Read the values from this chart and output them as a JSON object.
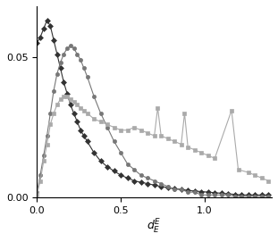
{
  "title": "",
  "xlabel": "$d_E^E$",
  "ylabel": "",
  "xlim": [
    0,
    1.4
  ],
  "ylim": [
    0,
    0.068
  ],
  "yticks": [
    0,
    0.05
  ],
  "xticks": [
    0,
    0.5,
    1
  ],
  "bg_color": "#ffffff",
  "lines": [
    {
      "color": "#333333",
      "marker": "D",
      "markersize": 3,
      "linewidth": 0.8,
      "x": [
        0.0,
        0.02,
        0.04,
        0.06,
        0.08,
        0.1,
        0.12,
        0.14,
        0.16,
        0.18,
        0.2,
        0.22,
        0.24,
        0.26,
        0.28,
        0.3,
        0.34,
        0.38,
        0.42,
        0.46,
        0.5,
        0.54,
        0.58,
        0.62,
        0.66,
        0.7,
        0.74,
        0.78,
        0.82,
        0.86,
        0.9,
        0.94,
        0.98,
        1.02,
        1.06,
        1.1,
        1.14,
        1.18,
        1.22,
        1.26,
        1.3,
        1.34,
        1.38
      ],
      "y": [
        0.055,
        0.057,
        0.06,
        0.063,
        0.061,
        0.056,
        0.051,
        0.046,
        0.041,
        0.037,
        0.033,
        0.03,
        0.027,
        0.024,
        0.022,
        0.02,
        0.016,
        0.013,
        0.011,
        0.0095,
        0.008,
        0.007,
        0.006,
        0.0055,
        0.005,
        0.0045,
        0.004,
        0.0036,
        0.0032,
        0.003,
        0.0026,
        0.0024,
        0.0022,
        0.002,
        0.0018,
        0.0016,
        0.0014,
        0.0012,
        0.001,
        0.001,
        0.001,
        0.001,
        0.001
      ]
    },
    {
      "color": "#777777",
      "marker": "o",
      "markersize": 3,
      "linewidth": 0.8,
      "x": [
        0.0,
        0.02,
        0.04,
        0.06,
        0.08,
        0.1,
        0.12,
        0.14,
        0.16,
        0.18,
        0.2,
        0.22,
        0.24,
        0.26,
        0.28,
        0.3,
        0.34,
        0.38,
        0.42,
        0.46,
        0.5,
        0.54,
        0.58,
        0.62,
        0.66,
        0.7,
        0.74,
        0.78,
        0.82,
        0.86,
        0.9,
        0.94,
        0.98,
        1.02,
        1.06,
        1.1,
        1.14,
        1.18,
        1.22,
        1.26,
        1.3,
        1.34,
        1.38
      ],
      "y": [
        0.002,
        0.008,
        0.015,
        0.022,
        0.03,
        0.038,
        0.044,
        0.048,
        0.051,
        0.053,
        0.054,
        0.053,
        0.051,
        0.049,
        0.046,
        0.043,
        0.036,
        0.03,
        0.025,
        0.02,
        0.016,
        0.012,
        0.01,
        0.008,
        0.007,
        0.006,
        0.005,
        0.004,
        0.003,
        0.003,
        0.002,
        0.002,
        0.001,
        0.001,
        0.001,
        0.001,
        0.001,
        0.0005,
        0.0005,
        0.0005,
        0.0005,
        0.0005,
        0.0005
      ]
    },
    {
      "color": "#aaaaaa",
      "marker": "s",
      "markersize": 3,
      "linewidth": 0.8,
      "x": [
        0.0,
        0.02,
        0.04,
        0.06,
        0.08,
        0.1,
        0.12,
        0.14,
        0.16,
        0.18,
        0.2,
        0.22,
        0.24,
        0.26,
        0.28,
        0.3,
        0.34,
        0.38,
        0.42,
        0.46,
        0.5,
        0.54,
        0.58,
        0.62,
        0.66,
        0.7,
        0.72,
        0.74,
        0.78,
        0.82,
        0.86,
        0.88,
        0.9,
        0.94,
        0.98,
        1.02,
        1.06,
        1.16,
        1.2,
        1.26,
        1.3,
        1.34,
        1.38
      ],
      "y": [
        0.001,
        0.006,
        0.013,
        0.019,
        0.026,
        0.03,
        0.033,
        0.035,
        0.036,
        0.036,
        0.035,
        0.034,
        0.033,
        0.032,
        0.031,
        0.03,
        0.028,
        0.027,
        0.026,
        0.025,
        0.024,
        0.024,
        0.025,
        0.024,
        0.023,
        0.022,
        0.032,
        0.022,
        0.021,
        0.02,
        0.019,
        0.03,
        0.018,
        0.017,
        0.016,
        0.015,
        0.014,
        0.031,
        0.01,
        0.009,
        0.008,
        0.007,
        0.006
      ]
    }
  ]
}
